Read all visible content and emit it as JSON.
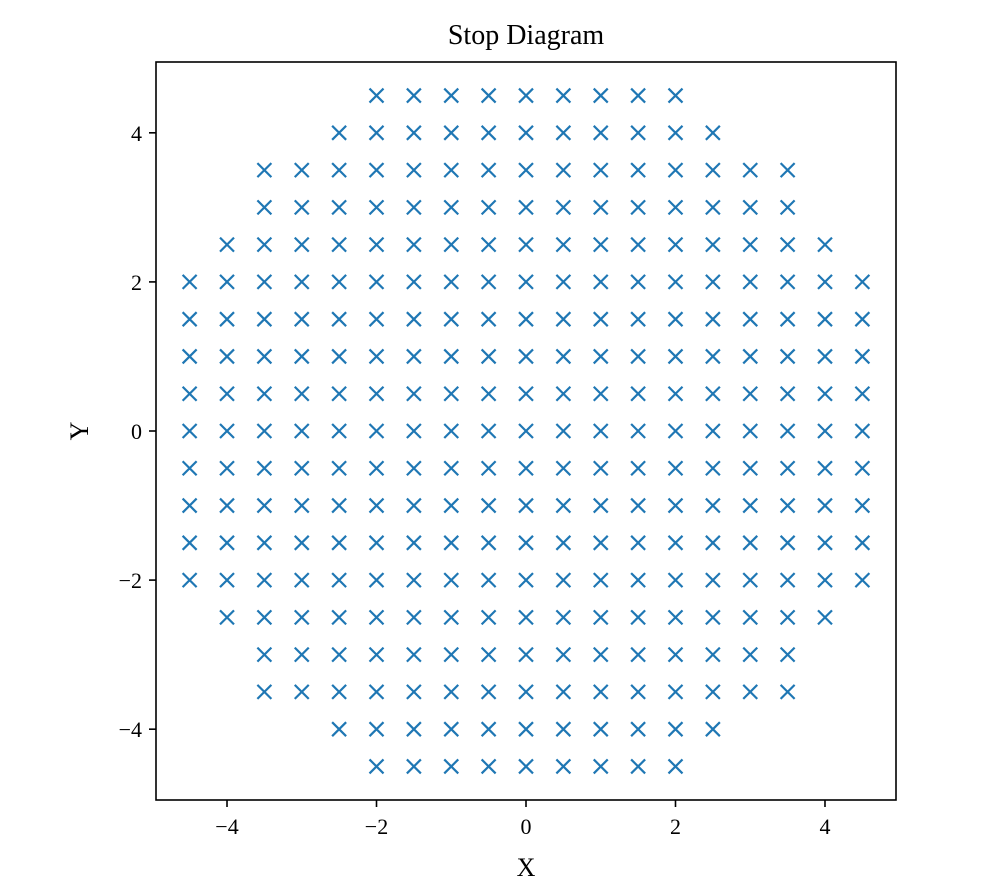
{
  "chart_data": {
    "type": "scatter",
    "title": "Stop Diagram",
    "xlabel": "X",
    "ylabel": "Y",
    "xlim": [
      -4.95,
      4.95
    ],
    "ylim": [
      -4.95,
      4.95
    ],
    "xticks": [
      -4,
      -2,
      0,
      2,
      4
    ],
    "yticks": [
      -4,
      -2,
      0,
      2,
      4
    ],
    "xtick_labels": [
      "−4",
      "−2",
      "0",
      "2",
      "4"
    ],
    "ytick_labels": [
      "−4",
      "−2",
      "0",
      "2",
      "4"
    ],
    "grid": false,
    "marker": "x",
    "color": "#1f77b4",
    "rows": [
      {
        "y": 4.5,
        "x_min": -2.0,
        "x_max": 2.0
      },
      {
        "y": 4.0,
        "x_min": -2.5,
        "x_max": 2.5
      },
      {
        "y": 3.5,
        "x_min": -3.5,
        "x_max": 3.5
      },
      {
        "y": 3.0,
        "x_min": -3.5,
        "x_max": 3.5
      },
      {
        "y": 2.5,
        "x_min": -4.0,
        "x_max": 4.0
      },
      {
        "y": 2.0,
        "x_min": -4.5,
        "x_max": 4.5
      },
      {
        "y": 1.5,
        "x_min": -4.5,
        "x_max": 4.5
      },
      {
        "y": 1.0,
        "x_min": -4.5,
        "x_max": 4.5
      },
      {
        "y": 0.5,
        "x_min": -4.5,
        "x_max": 4.5
      },
      {
        "y": 0.0,
        "x_min": -4.5,
        "x_max": 4.5
      },
      {
        "y": -0.5,
        "x_min": -4.5,
        "x_max": 4.5
      },
      {
        "y": -1.0,
        "x_min": -4.5,
        "x_max": 4.5
      },
      {
        "y": -1.5,
        "x_min": -4.5,
        "x_max": 4.5
      },
      {
        "y": -2.0,
        "x_min": -4.5,
        "x_max": 4.5
      },
      {
        "y": -2.5,
        "x_min": -4.0,
        "x_max": 4.0
      },
      {
        "y": -3.0,
        "x_min": -3.5,
        "x_max": 3.5
      },
      {
        "y": -3.5,
        "x_min": -3.5,
        "x_max": 3.5
      },
      {
        "y": -4.0,
        "x_min": -2.5,
        "x_max": 2.5
      },
      {
        "y": -4.5,
        "x_min": -2.0,
        "x_max": 2.0
      }
    ],
    "x_step": 0.5
  }
}
